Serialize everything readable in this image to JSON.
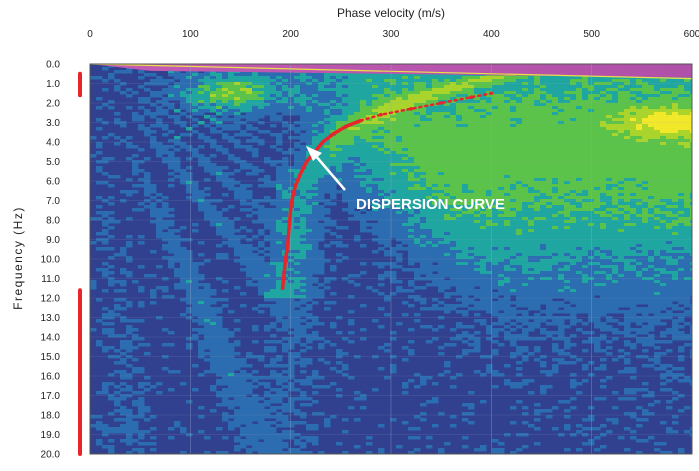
{
  "chart_data": {
    "type": "heatmap",
    "title": "",
    "xlabel": "Phase velocity (m/s)",
    "ylabel": "Frequency (Hz)",
    "xlim": [
      0,
      600
    ],
    "ylim": [
      0.0,
      20.0
    ],
    "x_axis_position": "top",
    "y_axis_inverted": true,
    "x_ticks": [
      "0",
      "100",
      "200",
      "300",
      "400",
      "500",
      "600"
    ],
    "y_ticks": [
      "0.0",
      "1.0",
      "2.0",
      "3.0",
      "4.0",
      "5.0",
      "6.0",
      "7.0",
      "8.0",
      "9.0",
      "10.0",
      "11.0",
      "12.0",
      "13.0",
      "14.0",
      "15.0",
      "16.0",
      "17.0",
      "18.0",
      "19.0",
      "20.0"
    ],
    "grid": true,
    "colormap": [
      "#30398f",
      "#2c6cb0",
      "#1fa6a0",
      "#5bc24a",
      "#a8d42c",
      "#f2e82a"
    ],
    "annotation": "DISPERSION CURVE",
    "annotation_color": "#ffffff",
    "curve_color": "#e8252b",
    "marker_color": "#e8252b",
    "dispersion_curve": {
      "x": [
        192,
        193,
        195,
        197,
        198,
        199,
        200,
        202,
        205,
        210,
        216,
        224,
        232,
        242,
        255,
        270,
        290,
        320,
        350,
        380,
        400
      ],
      "y": [
        11.5,
        11.0,
        10.0,
        9.3,
        8.6,
        8.0,
        7.4,
        6.8,
        6.2,
        5.6,
        5.0,
        4.5,
        4.0,
        3.6,
        3.2,
        2.9,
        2.6,
        2.3,
        2.0,
        1.7,
        1.5
      ]
    },
    "side_markers": [
      {
        "from": 0.5,
        "to": 1.6
      },
      {
        "from": 11.6,
        "to": 20.0
      }
    ]
  }
}
